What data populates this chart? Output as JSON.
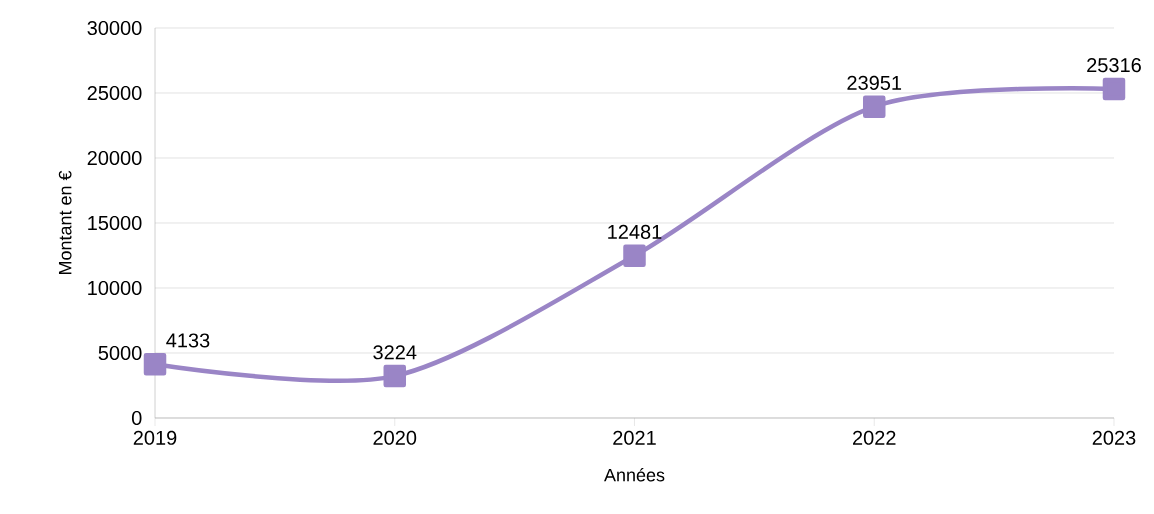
{
  "chart_data": {
    "type": "line",
    "xlabel": "Années",
    "ylabel": "Montant en €",
    "x": [
      2019,
      2020,
      2021,
      2022,
      2023
    ],
    "values": [
      4133,
      3224,
      12481,
      23951,
      25316
    ],
    "color": "#9a85c6",
    "marker": "square",
    "line_style": "solid",
    "grid": "y",
    "data_labels": true,
    "xlim": [
      2019,
      2023
    ],
    "ylim": [
      0,
      30000
    ],
    "xticks": [
      2019,
      2020,
      2021,
      2022,
      2023
    ],
    "yticks": [
      0,
      5000,
      10000,
      15000,
      20000,
      25000,
      30000
    ]
  }
}
